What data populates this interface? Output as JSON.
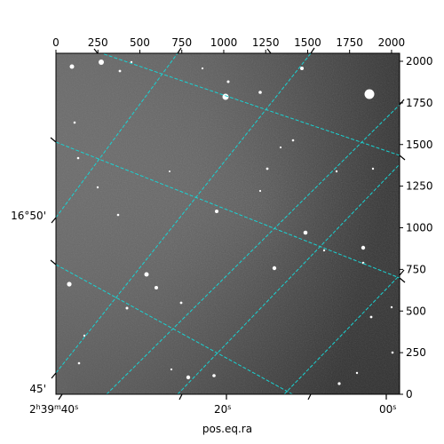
{
  "figure": {
    "xlabel": "pos.eq.ra",
    "pixel_axis_top": {
      "range": [
        0,
        2048
      ],
      "ticks": [
        0,
        250,
        500,
        750,
        1000,
        1250,
        1500,
        1750,
        2000
      ]
    },
    "pixel_axis_right": {
      "range": [
        0,
        2048
      ],
      "ticks": [
        0,
        250,
        500,
        750,
        1000,
        1250,
        1500,
        1750,
        2000
      ]
    },
    "ra_ticks": [
      {
        "text": "2h39m40s",
        "main": "2",
        "h": "h",
        "m_val": "39",
        "m": "m",
        "s_val": "40",
        "s": "s"
      },
      {
        "text": "20s",
        "main": "20",
        "s": "s"
      },
      {
        "text": "00s",
        "main": "00",
        "s": "s"
      }
    ],
    "dec_ticks": [
      {
        "text": "16°50'"
      },
      {
        "text": "45'"
      }
    ],
    "colors": {
      "grid": "#19d3d3",
      "sky_light": "#9a9a9a",
      "sky_dark": "#3a3a3a",
      "frame": "#000000"
    }
  }
}
